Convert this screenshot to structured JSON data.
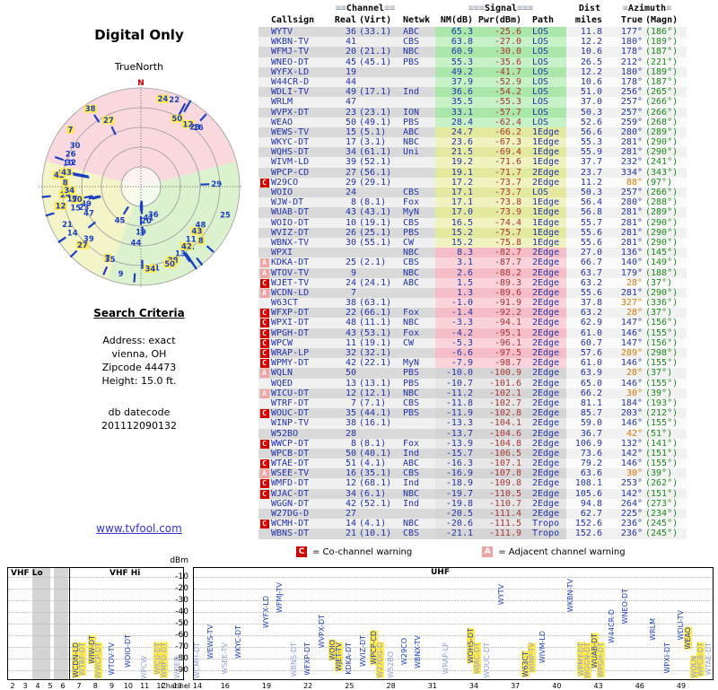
{
  "radar": {
    "title": "Digital Only",
    "north_label": "TrueNorth",
    "n": "N"
  },
  "search": {
    "heading": "Search Criteria",
    "lines": [
      "Address: exact",
      "vienna, OH",
      "Zipcode 44473",
      "Height: 15.0 ft."
    ],
    "datecode_label": "db datecode",
    "datecode": "201112090132"
  },
  "link": "www.tvfool.com",
  "legend": {
    "c_symbol": "C",
    "c_text": "= Co-channel warning",
    "a_symbol": "A",
    "a_text": "= Adjacent channel warning"
  },
  "spectrum": {
    "bands": [
      "VHF Lo",
      "VHF Hi",
      "UHF"
    ],
    "dbm_label": "dBm",
    "channel_label": "Channel",
    "dbm_ticks": [
      -10,
      -20,
      -30,
      -40,
      -50,
      -60,
      -70,
      -80,
      -90
    ],
    "vhf_ticks": [
      2,
      3,
      4,
      5,
      6,
      7,
      8,
      9,
      10,
      11,
      12,
      13
    ],
    "uhf_ticks": [
      14,
      16,
      19,
      22,
      25,
      28,
      31,
      34,
      37,
      40,
      43,
      46,
      49
    ]
  },
  "colors": {
    "band_green": [
      "#abe7ab",
      "#c7f1c7"
    ],
    "band_yellow": [
      "#e3e99f",
      "#f0f3c0"
    ],
    "band_pink": [
      "#f5bdc7",
      "#fad4da"
    ],
    "band_gray": [
      "#d5d5d5",
      "#e7e7e7"
    ],
    "col_left": [
      "#d9d9d9",
      "#f0f0f0"
    ],
    "col_right": [
      "#f1f1f1",
      "#fbfbfb"
    ],
    "text_blue": "#2233aa",
    "text_red": "#aa3333",
    "text_green": "#1a8a1a",
    "text_orange": "#dd7700",
    "warn_c": "#d40000",
    "warn_a": "#f2a2a2",
    "tick_blue": "#1b3fc4",
    "highlight": "#ffe94d",
    "sector_pink": "#f9d9de",
    "sector_green": "#dcf2cf",
    "sector_yellow": "#f4f4c9",
    "link": "#3333cc"
  },
  "table": {
    "groups": [
      {
        "pre": "≡≡",
        "label": "Channel",
        "post": "≡≡"
      },
      {
        "pre": "≡≡≡",
        "label": "Signal",
        "post": "≡≡≡"
      },
      {
        "pre": "",
        "label": "Dist",
        "post": ""
      },
      {
        "pre": "≡",
        "label": "Azimuth",
        "post": "≡"
      }
    ],
    "columns": [
      "Callsign",
      "Real",
      "(Virt)",
      "Netwk",
      "NM(dB)",
      "Pwr(dBm)",
      "Path",
      "miles",
      "True",
      "(Magn)"
    ],
    "rows": [
      {
        "cs": "WYTV",
        "re": "36",
        "vi": "(33.1)",
        "nw": "ABC",
        "nm": "65.3",
        "pw": "-25.6",
        "pa": "LOS",
        "mi": "11.8",
        "tr": "177°",
        "mg": "(186°)",
        "b": "g",
        "w": "",
        "hi": false
      },
      {
        "cs": "WKBN-TV",
        "re": "41",
        "vi": "",
        "nw": "CBS",
        "nm": "63.8",
        "pw": "-27.0",
        "pa": "LOS",
        "mi": "12.2",
        "tr": "180°",
        "mg": "(189°)",
        "b": "g",
        "w": "",
        "hi": false
      },
      {
        "cs": "WFMJ-TV",
        "re": "20",
        "vi": "(21.1)",
        "nw": "NBC",
        "nm": "60.9",
        "pw": "-30.0",
        "pa": "LOS",
        "mi": "10.6",
        "tr": "178°",
        "mg": "(187°)",
        "b": "g",
        "w": "",
        "hi": false
      },
      {
        "cs": "WNEO-DT",
        "re": "45",
        "vi": "(45.1)",
        "nw": "PBS",
        "nm": "55.3",
        "pw": "-35.6",
        "pa": "LOS",
        "mi": "26.5",
        "tr": "212°",
        "mg": "(221°)",
        "b": "g",
        "w": "",
        "hi": false
      },
      {
        "cs": "WYFX-LD",
        "re": "19",
        "vi": "",
        "nw": "",
        "nm": "49.2",
        "pw": "-41.7",
        "pa": "LOS",
        "mi": "12.2",
        "tr": "180°",
        "mg": "(189°)",
        "b": "g",
        "w": "",
        "hi": false
      },
      {
        "cs": "W44CR-D",
        "re": "44",
        "vi": "",
        "nw": "",
        "nm": "37.9",
        "pw": "-52.9",
        "pa": "LOS",
        "mi": "10.6",
        "tr": "178°",
        "mg": "(187°)",
        "b": "g",
        "w": "",
        "hi": false
      },
      {
        "cs": "WDLI-TV",
        "re": "49",
        "vi": "(17.1)",
        "nw": "Ind",
        "nm": "36.6",
        "pw": "-54.2",
        "pa": "LOS",
        "mi": "51.0",
        "tr": "256°",
        "mg": "(265°)",
        "b": "g",
        "w": "",
        "hi": false
      },
      {
        "cs": "WRLM",
        "re": "47",
        "vi": "",
        "nw": "",
        "nm": "35.5",
        "pw": "-55.3",
        "pa": "LOS",
        "mi": "37.0",
        "tr": "257°",
        "mg": "(266°)",
        "b": "g",
        "w": "",
        "hi": false
      },
      {
        "cs": "WVPX-DT",
        "re": "23",
        "vi": "(23.1)",
        "nw": "ION",
        "nm": "33.1",
        "pw": "-57.7",
        "pa": "LOS",
        "mi": "50.3",
        "tr": "257°",
        "mg": "(266°)",
        "b": "g",
        "w": "",
        "hi": false
      },
      {
        "cs": "WEAO",
        "re": "50",
        "vi": "(49.1)",
        "nw": "PBS",
        "nm": "28.4",
        "pw": "-62.4",
        "pa": "LOS",
        "mi": "52.6",
        "tr": "259°",
        "mg": "(268°)",
        "b": "g",
        "w": "",
        "hi": false
      },
      {
        "cs": "WEWS-TV",
        "re": "15",
        "vi": "(5.1)",
        "nw": "ABC",
        "nm": "24.7",
        "pw": "-66.2",
        "pa": "1Edge",
        "mi": "56.6",
        "tr": "280°",
        "mg": "(289°)",
        "b": "y",
        "w": "",
        "hi": false
      },
      {
        "cs": "WKYC-DT",
        "re": "17",
        "vi": "(3.1)",
        "nw": "NBC",
        "nm": "23.6",
        "pw": "-67.3",
        "pa": "1Edge",
        "mi": "55.3",
        "tr": "281°",
        "mg": "(290°)",
        "b": "y",
        "w": "",
        "hi": false
      },
      {
        "cs": "WQHS-DT",
        "re": "34",
        "vi": "(61.1)",
        "nw": "Uni",
        "nm": "21.5",
        "pw": "-69.4",
        "pa": "1Edge",
        "mi": "55.9",
        "tr": "281°",
        "mg": "(290°)",
        "b": "y",
        "w": "",
        "hi": false
      },
      {
        "cs": "WIVM-LD",
        "re": "39",
        "vi": "(52.1)",
        "nw": "",
        "nm": "19.2",
        "pw": "-71.6",
        "pa": "1Edge",
        "mi": "37.7",
        "tr": "232°",
        "mg": "(241°)",
        "b": "y",
        "w": "",
        "hi": false
      },
      {
        "cs": "WPCP-CD",
        "re": "27",
        "vi": "(56.1)",
        "nw": "",
        "nm": "19.1",
        "pw": "-71.7",
        "pa": "2Edge",
        "mi": "23.7",
        "tr": "334°",
        "mg": "(343°)",
        "b": "y",
        "w": "",
        "hi": false
      },
      {
        "cs": "W29CO",
        "re": "29",
        "vi": "(29.1)",
        "nw": "",
        "nm": "17.2",
        "pw": "-73.7",
        "pa": "2Edge",
        "mi": "11.2",
        "tr": "88°",
        "mg": "(97°)",
        "b": "y",
        "w": "C",
        "hi": true
      },
      {
        "cs": "WOIO",
        "re": "24",
        "vi": "",
        "nw": "CBS",
        "nm": "17.1",
        "pw": "-73.7",
        "pa": "LOS",
        "mi": "50.3",
        "tr": "257°",
        "mg": "(266°)",
        "b": "y",
        "w": "",
        "hi": false
      },
      {
        "cs": "WJW-DT",
        "re": "8",
        "vi": "(8.1)",
        "nw": "Fox",
        "nm": "17.1",
        "pw": "-73.8",
        "pa": "1Edge",
        "mi": "56.4",
        "tr": "280°",
        "mg": "(288°)",
        "b": "y",
        "w": "",
        "hi": false
      },
      {
        "cs": "WUAB-DT",
        "re": "43",
        "vi": "(43.1)",
        "nw": "MyN",
        "nm": "17.0",
        "pw": "-73.9",
        "pa": "1Edge",
        "mi": "56.8",
        "tr": "281°",
        "mg": "(289°)",
        "b": "y",
        "w": "",
        "hi": false
      },
      {
        "cs": "WOIO-DT",
        "re": "10",
        "vi": "(19.1)",
        "nw": "CBS",
        "nm": "16.5",
        "pw": "-74.4",
        "pa": "1Edge",
        "mi": "55.7",
        "tr": "281°",
        "mg": "(290°)",
        "b": "y",
        "w": "",
        "hi": false
      },
      {
        "cs": "WVIZ-DT",
        "re": "26",
        "vi": "(25.1)",
        "nw": "PBS",
        "nm": "15.2",
        "pw": "-75.7",
        "pa": "1Edge",
        "mi": "55.6",
        "tr": "281°",
        "mg": "(290°)",
        "b": "y",
        "w": "",
        "hi": false
      },
      {
        "cs": "WBNX-TV",
        "re": "30",
        "vi": "(55.1)",
        "nw": "CW",
        "nm": "15.2",
        "pw": "-75.8",
        "pa": "1Edge",
        "mi": "55.6",
        "tr": "281°",
        "mg": "(290°)",
        "b": "y",
        "w": "",
        "hi": false
      },
      {
        "cs": "WPXI",
        "re": "",
        "vi": "",
        "nw": "NBC",
        "nm": "8.3",
        "pw": "-82.7",
        "pa": "2Edge",
        "mi": "27.0",
        "tr": "136°",
        "mg": "(145°)",
        "b": "p",
        "w": "",
        "hi": false
      },
      {
        "cs": "KDKA-DT",
        "re": "25",
        "vi": "(2.1)",
        "nw": "CBS",
        "nm": "3.1",
        "pw": "-87.7",
        "pa": "2Edge",
        "mi": "66.7",
        "tr": "140°",
        "mg": "(149°)",
        "b": "p",
        "w": "A",
        "hi": false
      },
      {
        "cs": "WTOV-TV",
        "re": "9",
        "vi": "",
        "nw": "NBC",
        "nm": "2.6",
        "pw": "-88.2",
        "pa": "2Edge",
        "mi": "63.7",
        "tr": "179°",
        "mg": "(188°)",
        "b": "p",
        "w": "A",
        "hi": false
      },
      {
        "cs": "WJET-TV",
        "re": "24",
        "vi": "(24.1)",
        "nw": "ABC",
        "nm": "1.5",
        "pw": "-89.3",
        "pa": "2Edge",
        "mi": "63.2",
        "tr": "28°",
        "mg": "(37°)",
        "b": "p",
        "w": "C",
        "hi": true
      },
      {
        "cs": "WCDN-LD",
        "re": "7",
        "vi": "",
        "nw": "",
        "nm": "1.3",
        "pw": "-89.6",
        "pa": "2Edge",
        "mi": "55.6",
        "tr": "281°",
        "mg": "(290°)",
        "b": "p",
        "w": "A",
        "hi": false
      },
      {
        "cs": "W63CT",
        "re": "38",
        "vi": "(63.1)",
        "nw": "",
        "nm": "-1.0",
        "pw": "-91.9",
        "pa": "2Edge",
        "mi": "37.8",
        "tr": "327°",
        "mg": "(336°)",
        "b": "p",
        "w": "",
        "hi": true
      },
      {
        "cs": "WFXP-DT",
        "re": "22",
        "vi": "(66.1)",
        "nw": "Fox",
        "nm": "-1.4",
        "pw": "-92.2",
        "pa": "2Edge",
        "mi": "63.2",
        "tr": "28°",
        "mg": "(37°)",
        "b": "p",
        "w": "C",
        "hi": true
      },
      {
        "cs": "WPXI-DT",
        "re": "48",
        "vi": "(11.1)",
        "nw": "NBC",
        "nm": "-3.3",
        "pw": "-94.1",
        "pa": "2Edge",
        "mi": "62.9",
        "tr": "147°",
        "mg": "(156°)",
        "b": "p",
        "w": "C",
        "hi": false
      },
      {
        "cs": "WPGH-DT",
        "re": "43",
        "vi": "(53.1)",
        "nw": "Fox",
        "nm": "-4.2",
        "pw": "-95.1",
        "pa": "2Edge",
        "mi": "61.0",
        "tr": "146°",
        "mg": "(155°)",
        "b": "p",
        "w": "C",
        "hi": false
      },
      {
        "cs": "WPCW",
        "re": "11",
        "vi": "(19.1)",
        "nw": "CW",
        "nm": "-5.3",
        "pw": "-96.1",
        "pa": "2Edge",
        "mi": "60.7",
        "tr": "147°",
        "mg": "(156°)",
        "b": "p",
        "w": "C",
        "hi": false
      },
      {
        "cs": "WRAP-LP",
        "re": "32",
        "vi": "(32.1)",
        "nw": "",
        "nm": "-6.6",
        "pw": "-97.5",
        "pa": "2Edge",
        "mi": "57.6",
        "tr": "289°",
        "mg": "(298°)",
        "b": "p",
        "w": "C",
        "hi": true
      },
      {
        "cs": "WPMY-DT",
        "re": "42",
        "vi": "(22.1)",
        "nw": "MyN",
        "nm": "-7.9",
        "pw": "-98.7",
        "pa": "2Edge",
        "mi": "61.0",
        "tr": "146°",
        "mg": "(155°)",
        "b": "p",
        "w": "C",
        "hi": false
      },
      {
        "cs": "WQLN",
        "re": "50",
        "vi": "",
        "nw": "PBS",
        "nm": "-10.0",
        "pw": "-100.9",
        "pa": "2Edge",
        "mi": "63.9",
        "tr": "28°",
        "mg": "(37°)",
        "b": "x",
        "w": "A",
        "hi": true
      },
      {
        "cs": "WQED",
        "re": "13",
        "vi": "(13.1)",
        "nw": "PBS",
        "nm": "-10.7",
        "pw": "-101.6",
        "pa": "2Edge",
        "mi": "65.0",
        "tr": "146°",
        "mg": "(155°)",
        "b": "x",
        "w": "",
        "hi": false
      },
      {
        "cs": "WICU-DT",
        "re": "12",
        "vi": "(12.1)",
        "nw": "NBC",
        "nm": "-11.2",
        "pw": "-102.1",
        "pa": "2Edge",
        "mi": "66.2",
        "tr": "30°",
        "mg": "(39°)",
        "b": "x",
        "w": "A",
        "hi": true
      },
      {
        "cs": "WTRF-DT",
        "re": "7",
        "vi": "(7.1)",
        "nw": "CBS",
        "nm": "-11.8",
        "pw": "-102.7",
        "pa": "2Edge",
        "mi": "81.1",
        "tr": "184°",
        "mg": "(193°)",
        "b": "x",
        "w": "",
        "hi": false
      },
      {
        "cs": "WOUC-DT",
        "re": "35",
        "vi": "(44.1)",
        "nw": "PBS",
        "nm": "-11.9",
        "pw": "-102.8",
        "pa": "2Edge",
        "mi": "85.7",
        "tr": "203°",
        "mg": "(212°)",
        "b": "x",
        "w": "C",
        "hi": false
      },
      {
        "cs": "WINP-TV",
        "re": "38",
        "vi": "(16.1)",
        "nw": "",
        "nm": "-13.3",
        "pw": "-104.1",
        "pa": "2Edge",
        "mi": "59.0",
        "tr": "146°",
        "mg": "(155°)",
        "b": "x",
        "w": "",
        "hi": false
      },
      {
        "cs": "W52BO",
        "re": "28",
        "vi": "",
        "nw": "",
        "nm": "-13.7",
        "pw": "-104.6",
        "pa": "2Edge",
        "mi": "36.7",
        "tr": "42°",
        "mg": "(51°)",
        "b": "x",
        "w": "",
        "hi": true
      },
      {
        "cs": "WWCP-DT",
        "re": "8",
        "vi": "(8.1)",
        "nw": "Fox",
        "nm": "-13.9",
        "pw": "-104.8",
        "pa": "2Edge",
        "mi": "106.9",
        "tr": "132°",
        "mg": "(141°)",
        "b": "x",
        "w": "C",
        "hi": false
      },
      {
        "cs": "WPCB-DT",
        "re": "50",
        "vi": "(40.1)",
        "nw": "Ind",
        "nm": "-15.7",
        "pw": "-106.5",
        "pa": "2Edge",
        "mi": "73.6",
        "tr": "142°",
        "mg": "(151°)",
        "b": "x",
        "w": "",
        "hi": false
      },
      {
        "cs": "WTAE-DT",
        "re": "51",
        "vi": "(4.1)",
        "nw": "ABC",
        "nm": "-16.3",
        "pw": "-107.1",
        "pa": "2Edge",
        "mi": "79.2",
        "tr": "146°",
        "mg": "(155°)",
        "b": "x",
        "w": "C",
        "hi": false
      },
      {
        "cs": "WSEE-TV",
        "re": "16",
        "vi": "(35.1)",
        "nw": "CBS",
        "nm": "-16.9",
        "pw": "-107.8",
        "pa": "2Edge",
        "mi": "63.6",
        "tr": "30°",
        "mg": "(39°)",
        "b": "x",
        "w": "A",
        "hi": true
      },
      {
        "cs": "WMFD-DT",
        "re": "12",
        "vi": "(68.1)",
        "nw": "Ind",
        "nm": "-18.9",
        "pw": "-109.8",
        "pa": "2Edge",
        "mi": "108.1",
        "tr": "253°",
        "mg": "(262°)",
        "b": "x",
        "w": "C",
        "hi": false
      },
      {
        "cs": "WJAC-DT",
        "re": "34",
        "vi": "(6.1)",
        "nw": "NBC",
        "nm": "-19.7",
        "pw": "-110.5",
        "pa": "2Edge",
        "mi": "105.6",
        "tr": "142°",
        "mg": "(151°)",
        "b": "x",
        "w": "C",
        "hi": false
      },
      {
        "cs": "WGGN-DT",
        "re": "42",
        "vi": "(52.1)",
        "nw": "Ind",
        "nm": "-19.8",
        "pw": "-110.7",
        "pa": "2Edge",
        "mi": "94.8",
        "tr": "264°",
        "mg": "(273°)",
        "b": "x",
        "w": "",
        "hi": false
      },
      {
        "cs": "W27DG-D",
        "re": "27",
        "vi": "",
        "nw": "",
        "nm": "-20.5",
        "pw": "-111.4",
        "pa": "2Edge",
        "mi": "62.7",
        "tr": "225°",
        "mg": "(234°)",
        "b": "x",
        "w": "",
        "hi": false
      },
      {
        "cs": "WCMH-DT",
        "re": "14",
        "vi": "(4.1)",
        "nw": "NBC",
        "nm": "-20.6",
        "pw": "-111.5",
        "pa": "Tropo",
        "mi": "152.6",
        "tr": "236°",
        "mg": "(245°)",
        "b": "x",
        "w": "C",
        "hi": false
      },
      {
        "cs": "WBNS-DT",
        "re": "21",
        "vi": "(10.1)",
        "nw": "CBS",
        "nm": "-21.1",
        "pw": "-111.9",
        "pa": "Tropo",
        "mi": "152.6",
        "tr": "236°",
        "mg": "(245°)",
        "b": "x",
        "w": "",
        "hi": false
      }
    ]
  },
  "chart_data": [
    {
      "type": "scatter",
      "name": "azimuth-radar",
      "title": "Digital Only",
      "angle_field": "true azimuth (degrees, N=0, clockwise)",
      "radius_field": "NM(dB) — stronger signal plotted nearer center",
      "points_from": "table.rows (fields tr = angle, nm = strength, re = label)",
      "grid": "5 concentric rings, dotted N-S / E-W crosshair",
      "annotations": [
        "N",
        "TrueNorth"
      ]
    },
    {
      "type": "scatter",
      "name": "channel-power-spectrum",
      "x": "real channel number",
      "y": "Pwr(dBm)",
      "ylim": [
        -90,
        -10
      ],
      "sections": [
        "VHF Lo (ch 2-6)",
        "VHF Hi (ch 7-13)",
        "UHF (ch 14-51)"
      ],
      "points_from": "table.rows (fields re = x, pw = y, cs = label)",
      "legend": [
        "C = Co-channel warning",
        "A = Adjacent channel warning"
      ]
    }
  ]
}
